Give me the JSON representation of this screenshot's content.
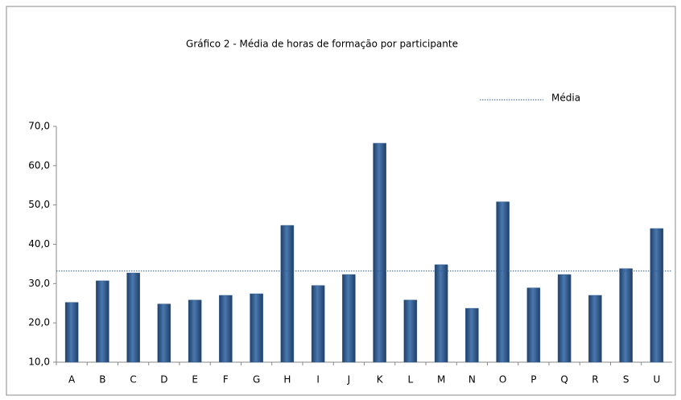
{
  "chart_data": {
    "type": "bar",
    "title": "Gráfico 2 -  Média de horas de formação por participante",
    "categories": [
      "A",
      "B",
      "C",
      "D",
      "E",
      "F",
      "G",
      "H",
      "I",
      "J",
      "K",
      "L",
      "M",
      "N",
      "O",
      "P",
      "Q",
      "R",
      "S",
      "U"
    ],
    "values": [
      25.2,
      30.7,
      32.7,
      24.8,
      25.8,
      27.0,
      27.4,
      44.8,
      29.5,
      32.3,
      65.7,
      25.8,
      34.8,
      23.7,
      50.8,
      28.9,
      32.3,
      27.0,
      33.8,
      44.0
    ],
    "color": "#2e5a8e",
    "average": {
      "name": "Média",
      "value": 33.2,
      "color": "#2e5a8e"
    },
    "ylim": [
      10,
      70
    ],
    "yticks": [
      {
        "value": 10,
        "label": "10,0"
      },
      {
        "value": 20,
        "label": "20,0"
      },
      {
        "value": 30,
        "label": "30,0"
      },
      {
        "value": 40,
        "label": "40,0"
      },
      {
        "value": 50,
        "label": "50,0"
      },
      {
        "value": 60,
        "label": "60,0"
      },
      {
        "value": 70,
        "label": "70,0"
      }
    ],
    "grid": false
  }
}
